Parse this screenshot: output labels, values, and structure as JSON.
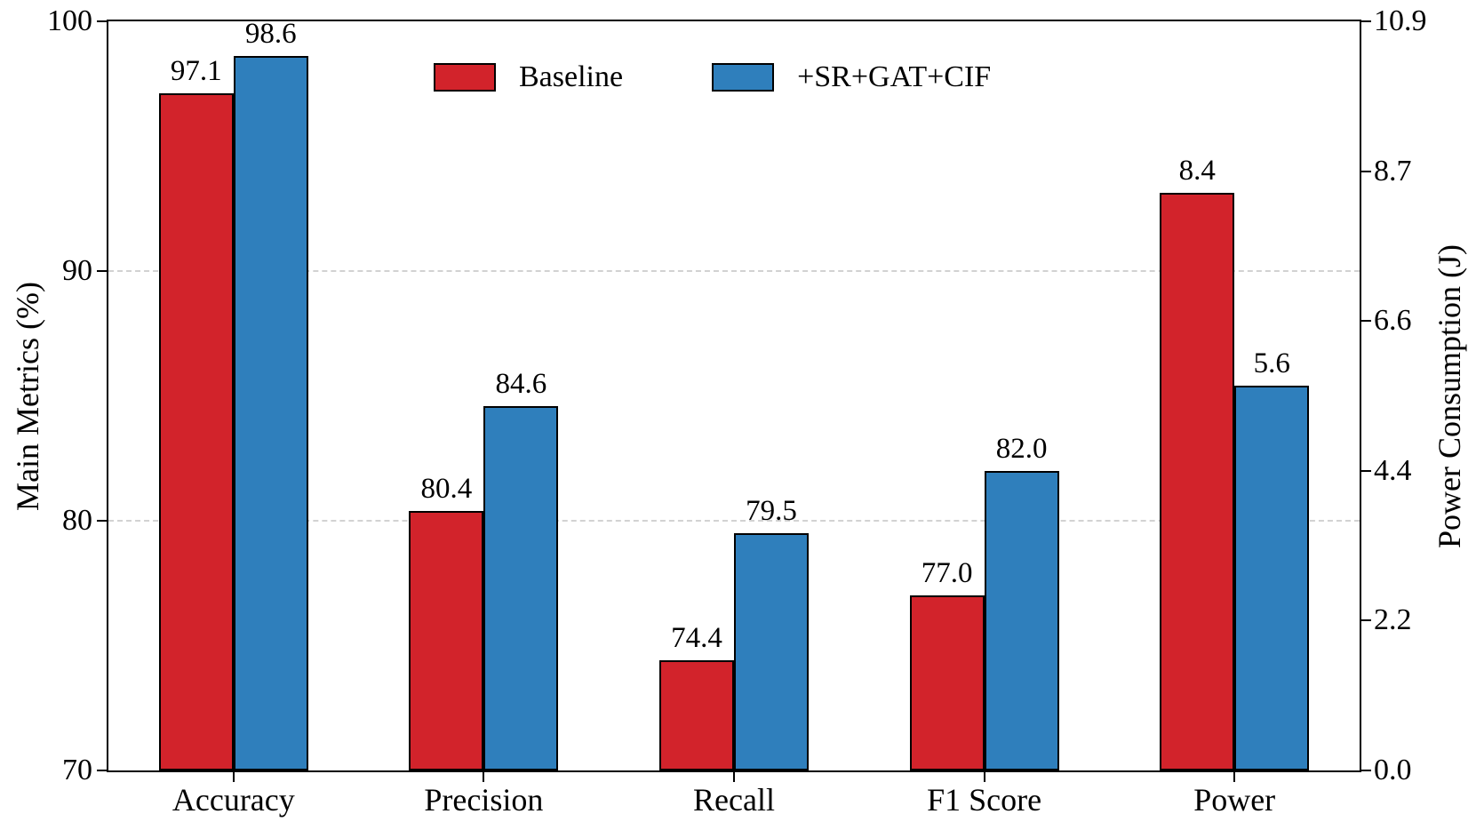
{
  "chart_data": {
    "type": "bar",
    "title": "",
    "categories": [
      "Accuracy",
      "Precision",
      "Recall",
      "F1 Score",
      "Power"
    ],
    "category_axis": [
      "left",
      "left",
      "left",
      "left",
      "right"
    ],
    "series": [
      {
        "name": "Baseline",
        "color": "#d2232b",
        "values": [
          97.1,
          80.4,
          74.4,
          77.0,
          8.4
        ]
      },
      {
        "name": "+SR+GAT+CIF",
        "color": "#2f7fbc",
        "values": [
          98.6,
          84.6,
          79.5,
          82.0,
          5.6
        ]
      }
    ],
    "left_axis": {
      "label": "Main Metrics (%)",
      "min": 70,
      "max": 100,
      "ticks": [
        {
          "value": 70,
          "label": "70"
        },
        {
          "value": 80,
          "label": "80"
        },
        {
          "value": 90,
          "label": "90"
        },
        {
          "value": 100,
          "label": "100"
        }
      ]
    },
    "right_axis": {
      "label": "Power Consumption (J)",
      "min": 0,
      "max": 10.9,
      "ticks": [
        {
          "value": 0,
          "label": "0.0"
        },
        {
          "value": 2.18,
          "label": "2.2"
        },
        {
          "value": 4.36,
          "label": "4.4"
        },
        {
          "value": 6.54,
          "label": "6.6"
        },
        {
          "value": 8.72,
          "label": "8.7"
        },
        {
          "value": 10.9,
          "label": "10.9"
        }
      ]
    },
    "grid": {
      "axis": "left",
      "values": [
        80,
        90
      ],
      "style": "dashed",
      "color": "#d2d2d2"
    },
    "legend": {
      "position": "top-center",
      "entries": [
        "Baseline",
        "+SR+GAT+CIF"
      ]
    },
    "value_label_decimals": 1
  }
}
